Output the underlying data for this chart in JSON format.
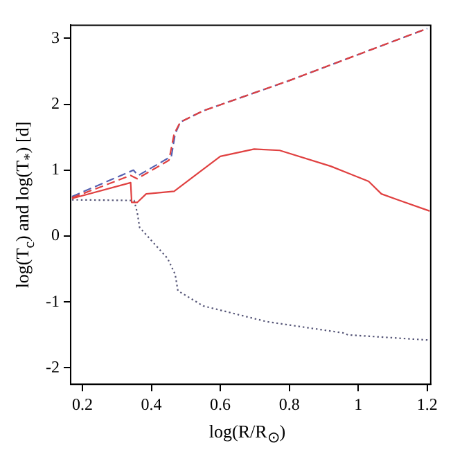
{
  "chart_data": {
    "type": "line",
    "xlabel": "log(R/R$_{⊙}$)",
    "ylabel": "log(T$_{c}$) and log(T$_{*}$) [d]",
    "xlim": [
      0.166,
      1.21
    ],
    "ylim": [
      -2.25,
      3.2
    ],
    "xticks": [
      0.2,
      0.4,
      0.6,
      0.8,
      1,
      1.2
    ],
    "yticks": [
      -2,
      -1,
      0,
      1,
      2,
      3
    ],
    "grid": false,
    "legend": false,
    "series": [
      {
        "color": "#e04040",
        "line_style": "dashed",
        "x": [
          0.17,
          0.34,
          0.359,
          0.451,
          0.466,
          0.484,
          0.55,
          0.8,
          1.2
        ],
        "values": [
          0.58,
          0.92,
          0.87,
          1.15,
          1.55,
          1.73,
          1.9,
          2.36,
          3.15
        ]
      },
      {
        "color": "#5560b0",
        "line_style": "dashed",
        "x": [
          0.17,
          0.348,
          0.362,
          0.458,
          0.469,
          0.484,
          0.55,
          0.8,
          1.2
        ],
        "values": [
          0.6,
          1.0,
          0.92,
          1.21,
          1.55,
          1.73,
          1.9,
          2.36,
          3.15
        ]
      },
      {
        "color": "#e04040",
        "line_style": "solid",
        "x": [
          0.17,
          0.34,
          0.343,
          0.359,
          0.385,
          0.466,
          0.6,
          0.698,
          0.772,
          0.92,
          1.03,
          1.067,
          1.115,
          1.207
        ],
        "values": [
          0.57,
          0.81,
          0.51,
          0.51,
          0.64,
          0.68,
          1.21,
          1.32,
          1.3,
          1.06,
          0.83,
          0.64,
          0.55,
          0.38
        ]
      },
      {
        "color": "#555577",
        "line_style": "dotted",
        "x": [
          0.17,
          0.35,
          0.359,
          0.366,
          0.447,
          0.469,
          0.477,
          0.55,
          0.735,
          0.956,
          0.97,
          1.207
        ],
        "values": [
          0.55,
          0.54,
          0.36,
          0.13,
          -0.34,
          -0.58,
          -0.83,
          -1.06,
          -1.3,
          -1.47,
          -1.5,
          -1.58
        ]
      }
    ]
  }
}
